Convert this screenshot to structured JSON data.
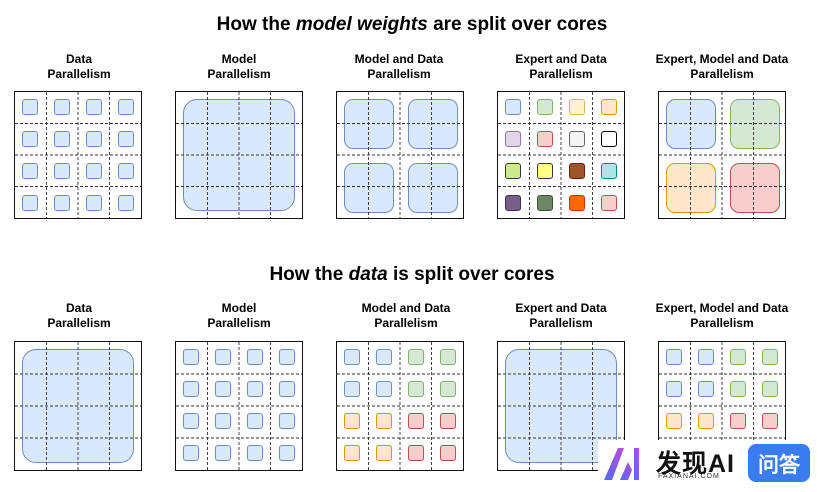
{
  "heading_top": {
    "prefix": "How the ",
    "emph": "model weights",
    "suffix": " are split over cores"
  },
  "heading_bottom": {
    "prefix": "How the ",
    "emph": "data",
    "suffix": " is split over cores"
  },
  "labels": {
    "data_parallelism": [
      "Data",
      "Parallelism"
    ],
    "model_parallelism": [
      "Model",
      "Parallelism"
    ],
    "model_and_data": [
      "Model and Data",
      "Parallelism"
    ],
    "expert_and_data": [
      "Expert and Data",
      "Parallelism"
    ],
    "expert_model_data": [
      "Expert, Model and Data",
      "Parallelism"
    ]
  },
  "watermark": {
    "brand": "发现AI",
    "sub": "FAXIANAI.COM",
    "badge": "问答"
  },
  "colors": {
    "blue_fill": "#dae8fc",
    "blue_stroke": "#6c8ebf",
    "green_fill": "#d5e8d4",
    "green_stroke": "#82b366",
    "orange_fill": "#ffe6cc",
    "orange_stroke": "#d79b00",
    "red_fill": "#f8cecc",
    "red_stroke": "#b85450",
    "yellow_fill": "#fff2cc",
    "yellow_stroke": "#d6b656",
    "purple_fill": "#e1d5e7",
    "purple_stroke": "#9673a6",
    "gray_fill": "#f5f5f5",
    "gray_stroke": "#666666",
    "white_fill": "#ffffff",
    "white_stroke": "#000000",
    "lime_fill": "#cdeb8b",
    "lime_stroke": "#36393d",
    "brightyellow_fill": "#ffff88",
    "brightyellow_stroke": "#36393d",
    "brown_fill": "#a0522d",
    "brown_stroke": "#6d1f00",
    "cyan_fill": "#b0e3e6",
    "cyan_stroke": "#0e8088",
    "darkpurple_fill": "#76608a",
    "darkpurple_stroke": "#432d57",
    "darkgreen_fill": "#6d8764",
    "darkgreen_stroke": "#3a5431",
    "vividorange_fill": "#fa6800",
    "vividorange_stroke": "#c73500"
  }
}
